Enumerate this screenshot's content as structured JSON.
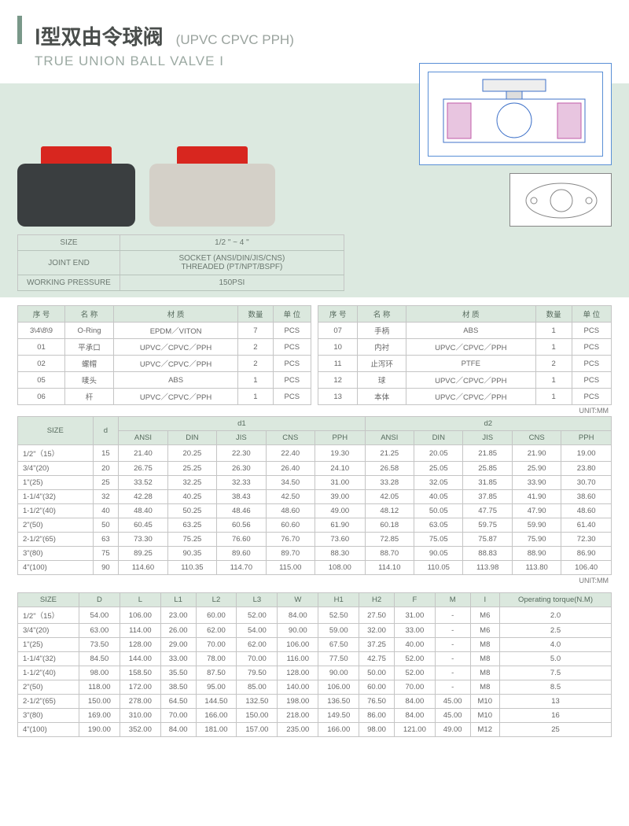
{
  "header": {
    "title_cn": "Ⅰ型双由令球阀",
    "materials": "(UPVC CPVC PPH)",
    "title_en": "TRUE UNION BALL VALVE I"
  },
  "hero": {
    "valve1_body_color": "#3a3e40",
    "valve1_handle_color": "#d8261f",
    "valve2_body_color": "#d4d0c8",
    "valve2_handle_color": "#d8261f",
    "diagram_stroke": "#3f72c9",
    "diagram_accent": "#c05ba8"
  },
  "specs": {
    "rows": [
      {
        "label": "SIZE",
        "value": "1/2 \" ~ 4 \""
      },
      {
        "label": "JOINT END",
        "value": "SOCKET (ANSI/DIN/JIS/CNS)\nTHREADED (PT/NPT/BSPF)"
      },
      {
        "label": "WORKING PRESSURE",
        "value": "150PSI"
      }
    ]
  },
  "parts": {
    "headers": [
      "序 号",
      "名 称",
      "材 质",
      "数量",
      "单 位"
    ],
    "left": [
      [
        "3\\4\\8\\9",
        "O-Ring",
        "EPDM／VITON",
        "7",
        "PCS"
      ],
      [
        "01",
        "平承口",
        "UPVC／CPVC／PPH",
        "2",
        "PCS"
      ],
      [
        "02",
        "螺帽",
        "UPVC／CPVC／PPH",
        "2",
        "PCS"
      ],
      [
        "05",
        "唛头",
        "ABS",
        "1",
        "PCS"
      ],
      [
        "06",
        "杆",
        "UPVC／CPVC／PPH",
        "1",
        "PCS"
      ]
    ],
    "right": [
      [
        "07",
        "手柄",
        "ABS",
        "1",
        "PCS"
      ],
      [
        "10",
        "内衬",
        "UPVC／CPVC／PPH",
        "1",
        "PCS"
      ],
      [
        "11",
        "止泻环",
        "PTFE",
        "2",
        "PCS"
      ],
      [
        "12",
        "球",
        "UPVC／CPVC／PPH",
        "1",
        "PCS"
      ],
      [
        "13",
        "本体",
        "UPVC／CPVC／PPH",
        "1",
        "PCS"
      ]
    ],
    "unit": "UNIT:MM"
  },
  "dims1": {
    "group_headers": [
      "SIZE",
      "d",
      "d1",
      "d2"
    ],
    "sub_headers": [
      "ANSI",
      "DIN",
      "JIS",
      "CNS",
      "PPH",
      "ANSI",
      "DIN",
      "JIS",
      "CNS",
      "PPH"
    ],
    "rows": [
      [
        "1/2\"（15）",
        "15",
        "21.40",
        "20.25",
        "22.30",
        "22.40",
        "19.30",
        "21.25",
        "20.05",
        "21.85",
        "21.90",
        "19.00"
      ],
      [
        "3/4\"(20)",
        "20",
        "26.75",
        "25.25",
        "26.30",
        "26.40",
        "24.10",
        "26.58",
        "25.05",
        "25.85",
        "25.90",
        "23.80"
      ],
      [
        "1\"(25)",
        "25",
        "33.52",
        "32.25",
        "32.33",
        "34.50",
        "31.00",
        "33.28",
        "32.05",
        "31.85",
        "33.90",
        "30.70"
      ],
      [
        "1-1/4\"(32)",
        "32",
        "42.28",
        "40.25",
        "38.43",
        "42.50",
        "39.00",
        "42.05",
        "40.05",
        "37.85",
        "41.90",
        "38.60"
      ],
      [
        "1-1/2\"(40)",
        "40",
        "48.40",
        "50.25",
        "48.46",
        "48.60",
        "49.00",
        "48.12",
        "50.05",
        "47.75",
        "47.90",
        "48.60"
      ],
      [
        "2\"(50)",
        "50",
        "60.45",
        "63.25",
        "60.56",
        "60.60",
        "61.90",
        "60.18",
        "63.05",
        "59.75",
        "59.90",
        "61.40"
      ],
      [
        "2-1/2\"(65)",
        "63",
        "73.30",
        "75.25",
        "76.60",
        "76.70",
        "73.60",
        "72.85",
        "75.05",
        "75.87",
        "75.90",
        "72.30"
      ],
      [
        "3\"(80)",
        "75",
        "89.25",
        "90.35",
        "89.60",
        "89.70",
        "88.30",
        "88.70",
        "90.05",
        "88.83",
        "88.90",
        "86.90"
      ],
      [
        "4\"(100)",
        "90",
        "114.60",
        "110.35",
        "114.70",
        "115.00",
        "108.00",
        "114.10",
        "110.05",
        "113.98",
        "113.80",
        "106.40"
      ]
    ],
    "unit": "UNIT:MM"
  },
  "dims2": {
    "headers": [
      "SIZE",
      "D",
      "L",
      "L1",
      "L2",
      "L3",
      "W",
      "H1",
      "H2",
      "F",
      "M",
      "I",
      "Operating torque(N.M)"
    ],
    "rows": [
      [
        "1/2\"（15）",
        "54.00",
        "106.00",
        "23.00",
        "60.00",
        "52.00",
        "84.00",
        "52.50",
        "27.50",
        "31.00",
        "-",
        "M6",
        "2.0"
      ],
      [
        "3/4\"(20)",
        "63.00",
        "114.00",
        "26.00",
        "62.00",
        "54.00",
        "90.00",
        "59.00",
        "32.00",
        "33.00",
        "-",
        "M6",
        "2.5"
      ],
      [
        "1\"(25)",
        "73.50",
        "128.00",
        "29.00",
        "70.00",
        "62.00",
        "106.00",
        "67.50",
        "37.25",
        "40.00",
        "-",
        "M8",
        "4.0"
      ],
      [
        "1-1/4\"(32)",
        "84.50",
        "144.00",
        "33.00",
        "78.00",
        "70.00",
        "116.00",
        "77.50",
        "42.75",
        "52.00",
        "-",
        "M8",
        "5.0"
      ],
      [
        "1-1/2\"(40)",
        "98.00",
        "158.50",
        "35.50",
        "87.50",
        "79.50",
        "128.00",
        "90.00",
        "50.00",
        "52.00",
        "-",
        "M8",
        "7.5"
      ],
      [
        "2\"(50)",
        "118.00",
        "172.00",
        "38.50",
        "95.00",
        "85.00",
        "140.00",
        "106.00",
        "60.00",
        "70.00",
        "-",
        "M8",
        "8.5"
      ],
      [
        "2-1/2\"(65)",
        "150.00",
        "278.00",
        "64.50",
        "144.50",
        "132.50",
        "198.00",
        "136.50",
        "76.50",
        "84.00",
        "45.00",
        "M10",
        "13"
      ],
      [
        "3\"(80)",
        "169.00",
        "310.00",
        "70.00",
        "166.00",
        "150.00",
        "218.00",
        "149.50",
        "86.00",
        "84.00",
        "45.00",
        "M10",
        "16"
      ],
      [
        "4\"(100)",
        "190.00",
        "352.00",
        "84.00",
        "181.00",
        "157.00",
        "235.00",
        "166.00",
        "98.00",
        "121.00",
        "49.00",
        "M12",
        "25"
      ]
    ]
  }
}
